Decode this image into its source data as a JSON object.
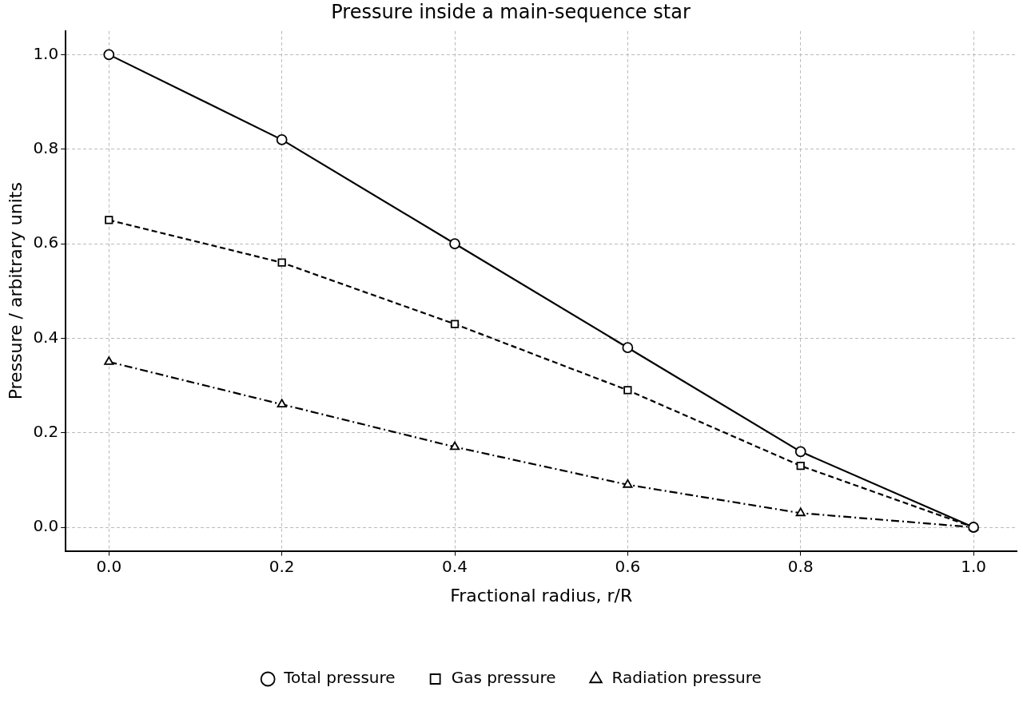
{
  "chart_data": {
    "type": "line",
    "title": "Pressure inside a main-sequence star",
    "xlabel": "Fractional radius, r/R",
    "ylabel": "Pressure / arbitrary units",
    "x": [
      0.0,
      0.2,
      0.4,
      0.6,
      0.8,
      1.0
    ],
    "series": [
      {
        "name": "Total pressure",
        "color": "#000000",
        "values": [
          1.0,
          0.82,
          0.6,
          0.38,
          0.16,
          0.0
        ],
        "marker": "circle",
        "line_style": "solid"
      },
      {
        "name": "Gas pressure",
        "color": "#000000",
        "values": [
          0.65,
          0.56,
          0.43,
          0.29,
          0.13,
          0.0
        ],
        "marker": "square",
        "line_style": "dashed"
      },
      {
        "name": "Radiation pressure",
        "color": "#000000",
        "values": [
          0.35,
          0.26,
          0.17,
          0.09,
          0.03,
          0.0
        ],
        "marker": "triangle",
        "line_style": "dashdot"
      }
    ],
    "xlim": [
      -0.05,
      1.05
    ],
    "xticks": [
      {
        "value": 0,
        "label": "0.0"
      },
      0.2,
      0.4,
      0.6,
      0.8,
      {
        "value": 1,
        "label": "1.0"
      }
    ],
    "ylim": [
      -0.05,
      1.05
    ],
    "yticks": [
      {
        "value": 0,
        "label": "0.0"
      },
      0.2,
      0.4,
      0.6,
      0.8,
      {
        "value": 1,
        "label": "1.0"
      }
    ],
    "grid": true,
    "legend": "bottom"
  }
}
